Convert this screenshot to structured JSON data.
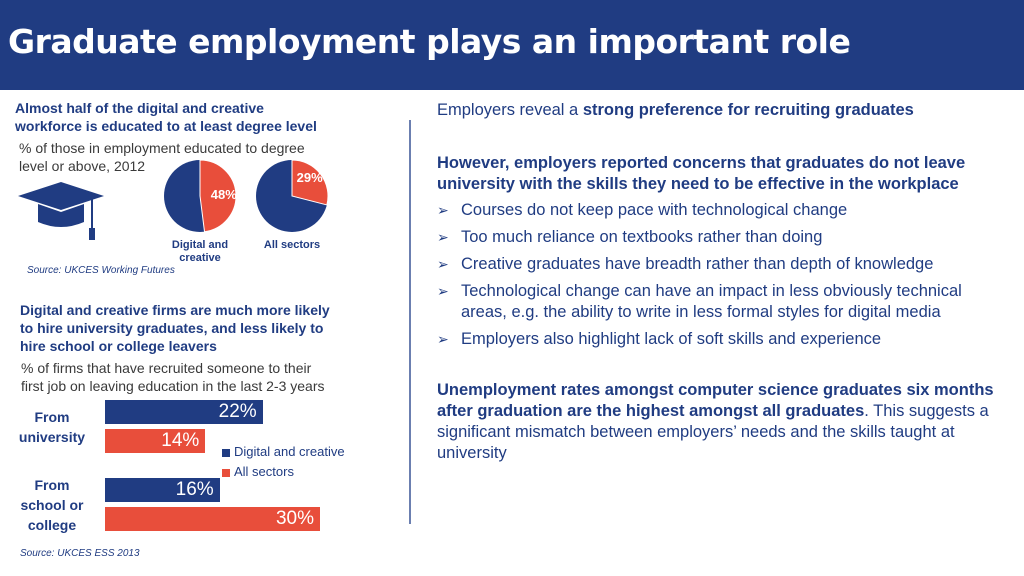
{
  "header": {
    "title": "Graduate employment plays an important role"
  },
  "left_top": {
    "heading_line1": "Almost half of the digital and creative",
    "heading_line2": "workforce is educated to at least degree level",
    "sub_line1": "% of those in employment educated to degree",
    "sub_line2": "level or above, 2012",
    "source": "Source: UKCES Working Futures"
  },
  "left_bottom": {
    "heading_line1": "Digital and creative firms are much more likely",
    "heading_line2": "to hire university graduates, and less likely to",
    "heading_line3": "hire school or college leavers",
    "sub_line1": "% of firms that have recruited someone to their",
    "sub_line2": "first job on leaving education in the last 2-3 years",
    "source": "Source: UKCES ESS 2013"
  },
  "right": {
    "p1_normal": "Employers reveal a ",
    "p1_bold": "strong preference for recruiting graduates",
    "p2_bold": "However, employers reported concerns that graduates do not leave university with the skills they need to be effective in the workplace",
    "bullets": [
      "Courses do not keep pace with technological change",
      "Too much reliance on textbooks rather than doing",
      "Creative graduates have breadth rather than depth of knowledge",
      "Technological change can have an impact in less obviously technical areas, e.g. the ability to write in less formal styles for digital media",
      "Employers also highlight lack of soft skills and experience"
    ],
    "p3_bold": "Unemployment rates amongst computer science graduates six months after graduation are the highest amongst all graduates",
    "p3_dot": ".",
    "p3_normal": " This suggests a significant mismatch between employers’ needs and the skills taught at university"
  },
  "colors": {
    "navy": "#203c82",
    "red": "#e84e3b"
  },
  "icons": {
    "graduation": "graduation-cap-icon",
    "bullet": "arrow-bullet-icon"
  },
  "chart_data": [
    {
      "type": "pie",
      "slices": [
        {
          "name": "Digital and creative",
          "value": 48,
          "label": "48%"
        },
        {
          "name": "All sectors",
          "value": 29,
          "label": "29%"
        }
      ]
    },
    {
      "type": "bar",
      "orientation": "horizontal",
      "categories": [
        "From university",
        "From school or college"
      ],
      "series": [
        {
          "name": "Digital and creative",
          "values": [
            22,
            16
          ],
          "labels": [
            "22%",
            "16%"
          ]
        },
        {
          "name": "All sectors",
          "values": [
            14,
            30
          ],
          "labels": [
            "14%",
            "30%"
          ]
        }
      ],
      "legend_position": "right",
      "xlim": [
        0,
        30
      ]
    }
  ]
}
